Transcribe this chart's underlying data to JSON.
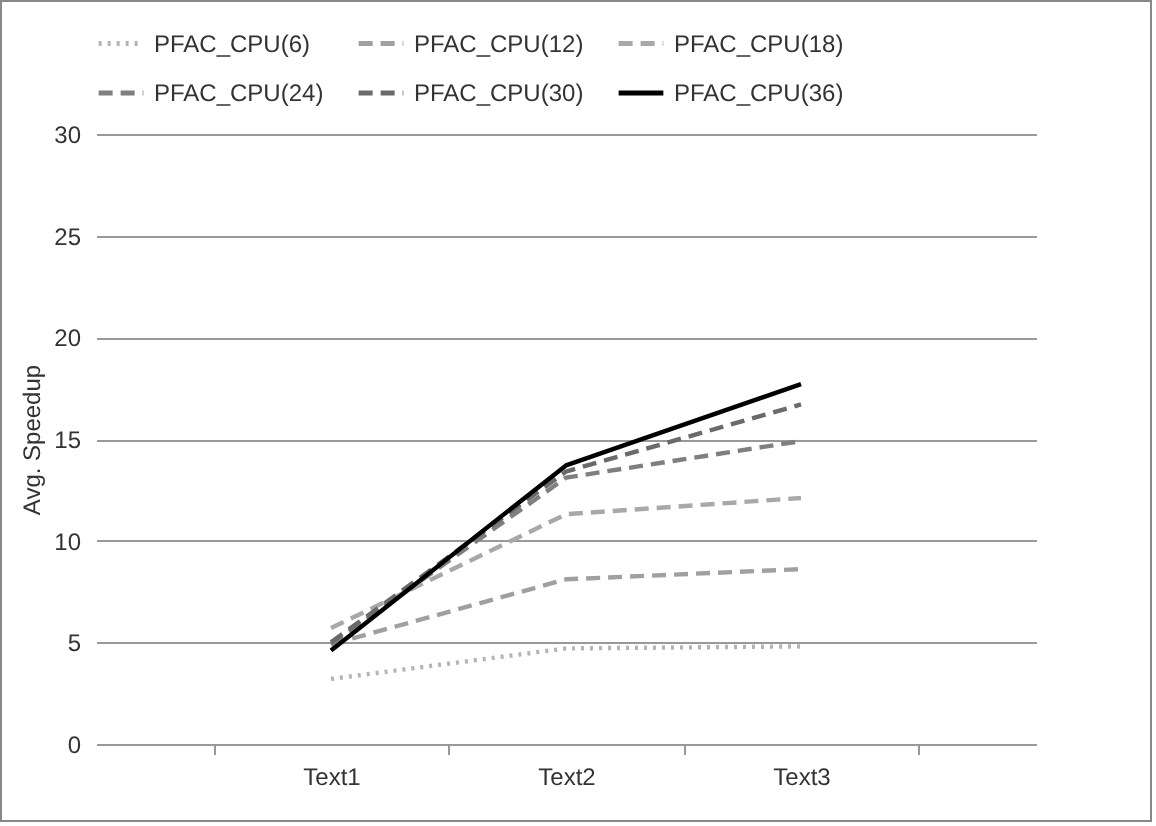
{
  "chart_data": {
    "type": "line",
    "ylabel": "Avg. Speedup",
    "categories": [
      "Text1",
      "Text2",
      "Text3"
    ],
    "series": [
      {
        "name": "PFAC_CPU(6)",
        "color": "#b4b4b4",
        "line_style": "dotted",
        "values": [
          3.2,
          4.7,
          4.8
        ]
      },
      {
        "name": "PFAC_CPU(12)",
        "color": "#a0a0a0",
        "line_style": "dashed",
        "values": [
          4.9,
          8.1,
          8.6
        ]
      },
      {
        "name": "PFAC_CPU(18)",
        "color": "#a8a8a8",
        "line_style": "dashed",
        "values": [
          5.7,
          11.3,
          12.1
        ]
      },
      {
        "name": "PFAC_CPU(24)",
        "color": "#7f7f7f",
        "line_style": "dashed",
        "values": [
          4.9,
          13.1,
          14.9
        ]
      },
      {
        "name": "PFAC_CPU(30)",
        "color": "#6a6a6a",
        "line_style": "dashed",
        "values": [
          5.0,
          13.4,
          16.7
        ]
      },
      {
        "name": "PFAC_CPU(36)",
        "color": "#000000",
        "line_style": "solid",
        "values": [
          4.6,
          13.7,
          17.7
        ]
      }
    ],
    "ylim": [
      0,
      30
    ],
    "yticks": [
      0,
      5,
      10,
      15,
      20,
      25,
      30
    ],
    "grid": "y",
    "legend": "top",
    "marker": "none"
  }
}
